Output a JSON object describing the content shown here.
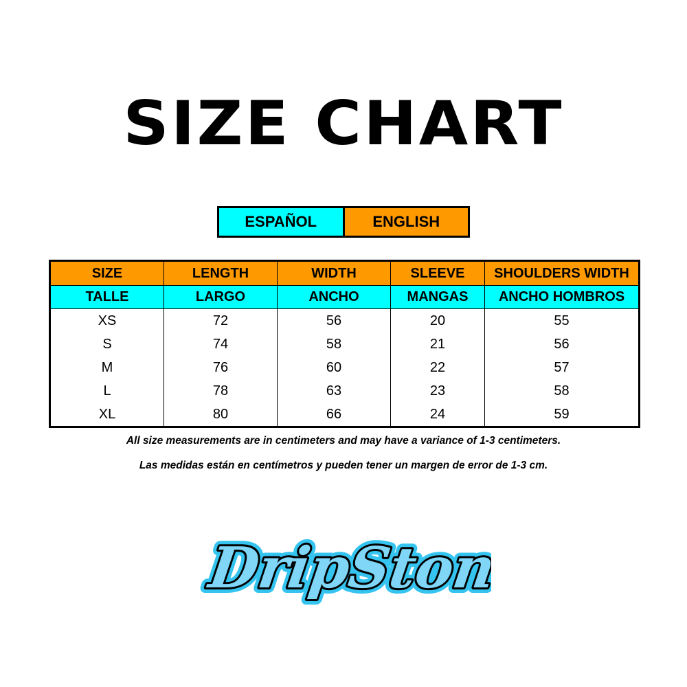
{
  "title": "SIZE CHART",
  "language_toggle": {
    "spanish": "ESPAÑOL",
    "english": "ENGLISH"
  },
  "colors": {
    "english": "#ff9900",
    "spanish": "#00ffff"
  },
  "table": {
    "headers_en": [
      "SIZE",
      "LENGTH",
      "WIDTH",
      "SLEEVE",
      "SHOULDERS WIDTH"
    ],
    "headers_es": [
      "TALLE",
      "LARGO",
      "ANCHO",
      "MANGAS",
      "ANCHO HOMBROS"
    ],
    "rows": [
      [
        "XS",
        "72",
        "56",
        "20",
        "55"
      ],
      [
        "S",
        "74",
        "58",
        "21",
        "56"
      ],
      [
        "M",
        "76",
        "60",
        "22",
        "57"
      ],
      [
        "L",
        "78",
        "63",
        "23",
        "58"
      ],
      [
        "XL",
        "80",
        "66",
        "24",
        "59"
      ]
    ]
  },
  "notes": {
    "en": "All size measurements are in centimeters and may have a variance of 1-3 centimeters.",
    "es": "Las medidas están en centímetros y pueden tener un margen de error de 1-3 cm."
  },
  "logo": {
    "text": "DripStone"
  }
}
